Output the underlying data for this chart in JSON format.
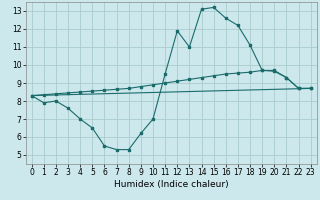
{
  "xlabel": "Humidex (Indice chaleur)",
  "background_color": "#cce8ec",
  "grid_color": "#aacccc",
  "line_color": "#1a6b6b",
  "spine_color": "#888888",
  "xlim": [
    -0.5,
    23.5
  ],
  "ylim": [
    4.5,
    13.5
  ],
  "xticks": [
    0,
    1,
    2,
    3,
    4,
    5,
    6,
    7,
    8,
    9,
    10,
    11,
    12,
    13,
    14,
    15,
    16,
    17,
    18,
    19,
    20,
    21,
    22,
    23
  ],
  "yticks": [
    5,
    6,
    7,
    8,
    9,
    10,
    11,
    12,
    13
  ],
  "series1_x": [
    0,
    1,
    2,
    3,
    4,
    5,
    6,
    7,
    8,
    9,
    10,
    11,
    12,
    13,
    14,
    15,
    16,
    17,
    18,
    19,
    20,
    21,
    22,
    23
  ],
  "series1_y": [
    8.3,
    7.9,
    8.0,
    7.6,
    7.0,
    6.5,
    5.5,
    5.3,
    5.3,
    6.2,
    7.0,
    9.5,
    11.9,
    11.0,
    13.1,
    13.2,
    12.6,
    12.2,
    11.1,
    9.7,
    9.7,
    9.3,
    8.7,
    8.7
  ],
  "series2_x": [
    0,
    1,
    2,
    3,
    4,
    5,
    6,
    7,
    8,
    9,
    10,
    11,
    12,
    13,
    14,
    15,
    16,
    17,
    18,
    19,
    20,
    21,
    22,
    23
  ],
  "series2_y": [
    8.3,
    8.35,
    8.4,
    8.45,
    8.5,
    8.55,
    8.6,
    8.65,
    8.7,
    8.8,
    8.9,
    9.0,
    9.1,
    9.2,
    9.3,
    9.4,
    9.5,
    9.55,
    9.6,
    9.7,
    9.65,
    9.3,
    8.7,
    8.7
  ],
  "series3_x": [
    0,
    23
  ],
  "series3_y": [
    8.3,
    8.7
  ],
  "tick_fontsize": 5.5,
  "xlabel_fontsize": 6.5,
  "marker_size": 2.0,
  "line_width": 0.8
}
